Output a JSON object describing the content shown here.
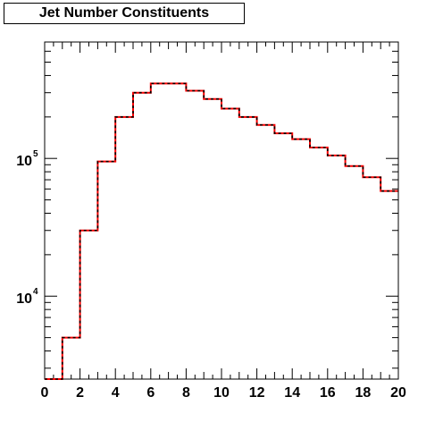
{
  "title": "Jet Number Constituents",
  "chart_data": {
    "type": "step-histogram",
    "title": "Jet Number Constituents",
    "xlabel": "",
    "ylabel": "",
    "x_scale": "linear",
    "y_scale": "log",
    "xlim": [
      0,
      20
    ],
    "ylim": [
      2500,
      700000
    ],
    "grid": false,
    "legend": "none",
    "bin_edges": [
      0,
      1,
      2,
      3,
      4,
      5,
      6,
      7,
      8,
      9,
      10,
      11,
      12,
      13,
      14,
      15,
      16,
      17,
      18,
      19,
      20
    ],
    "series": [
      {
        "color": "#ff0000",
        "line_style": "solid",
        "values": [
          2500,
          5000,
          30000,
          95000,
          200000,
          300000,
          350000,
          350000,
          310000,
          270000,
          230000,
          200000,
          175000,
          152000,
          138000,
          120000,
          105000,
          88000,
          73000,
          58000
        ]
      },
      {
        "color": "#000000",
        "line_style": "dashed",
        "values": [
          2500,
          5000,
          30000,
          95000,
          200000,
          300000,
          350000,
          350000,
          310000,
          270000,
          230000,
          200000,
          175000,
          152000,
          138000,
          120000,
          105000,
          88000,
          73000,
          58000
        ]
      }
    ],
    "x_ticks": [
      {
        "value": 0,
        "label": "0"
      },
      {
        "value": 2,
        "label": "2"
      },
      {
        "value": 4,
        "label": "4"
      },
      {
        "value": 6,
        "label": "6"
      },
      {
        "value": 8,
        "label": "8"
      },
      {
        "value": 10,
        "label": "10"
      },
      {
        "value": 12,
        "label": "12"
      },
      {
        "value": 14,
        "label": "14"
      },
      {
        "value": 16,
        "label": "16"
      },
      {
        "value": 18,
        "label": "18"
      },
      {
        "value": 20,
        "label": "20"
      }
    ],
    "y_ticks": [
      {
        "value": 10000,
        "base": "10",
        "exponent": "4"
      },
      {
        "value": 100000,
        "base": "10",
        "exponent": "5"
      }
    ]
  }
}
